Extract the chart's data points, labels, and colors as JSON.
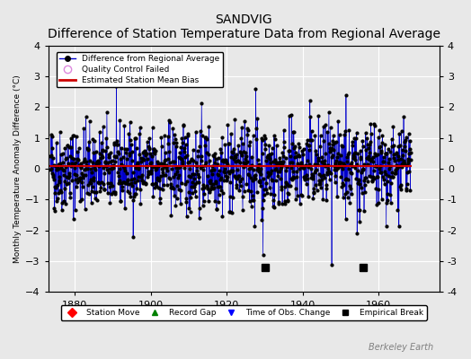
{
  "title": "SANDVIG",
  "subtitle": "Difference of Station Temperature Data from Regional Average",
  "ylabel": "Monthly Temperature Anomaly Difference (°C)",
  "xlim": [
    1873,
    1976
  ],
  "ylim": [
    -4,
    4
  ],
  "yticks": [
    -4,
    -3,
    -2,
    -1,
    0,
    1,
    2,
    3,
    4
  ],
  "xticks": [
    1880,
    1900,
    1920,
    1940,
    1960
  ],
  "line_color": "#0000cc",
  "marker_color": "#000000",
  "bias_color": "#cc0000",
  "qc_color": "#ff88ff",
  "background_color": "#e8e8e8",
  "plot_bg_color": "#e8e8e8",
  "grid_color": "#ffffff",
  "seed": 42,
  "n_points": 1140,
  "start_year": 1873.5,
  "bias_level": 0.1,
  "empirical_breaks": [
    1930,
    1956
  ],
  "time_obs_changes": [],
  "station_moves": [],
  "record_gaps": [],
  "watermark": "Berkeley Earth"
}
